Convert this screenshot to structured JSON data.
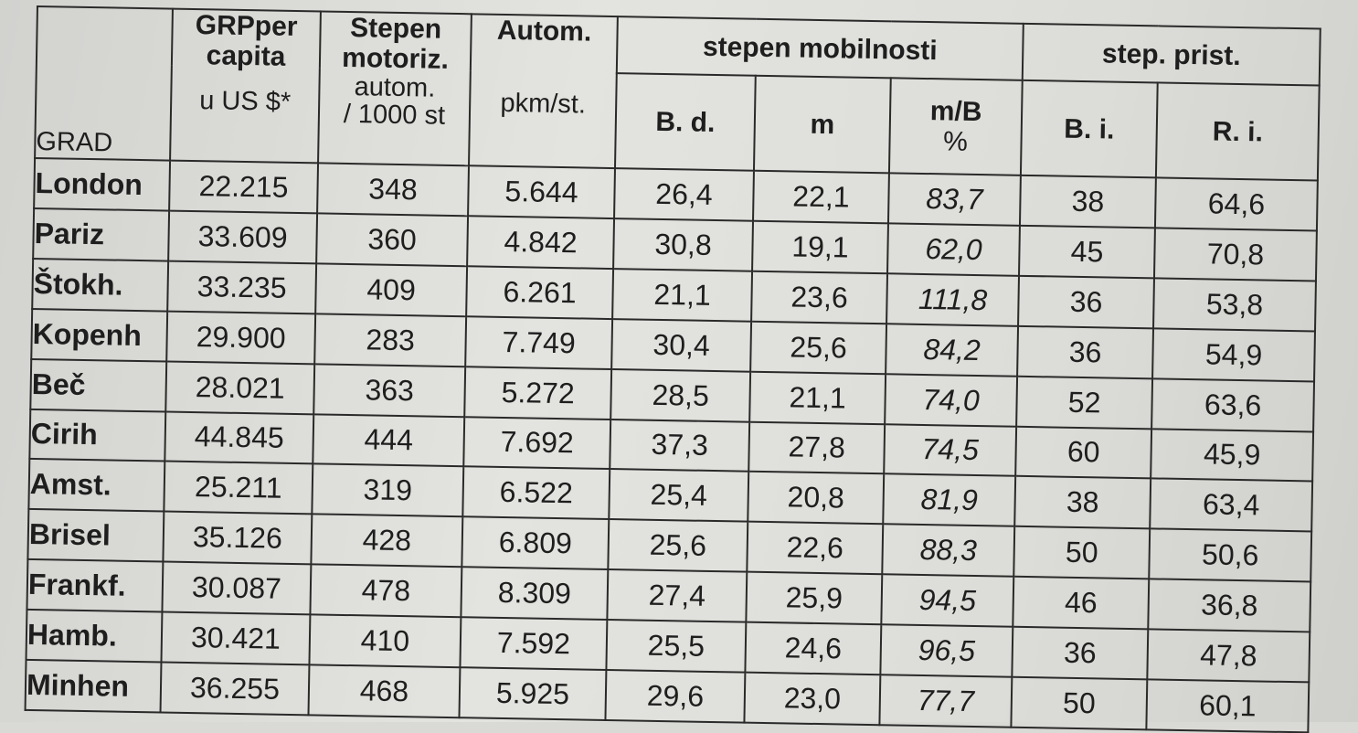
{
  "headers": {
    "grad": "GRAD",
    "grp_line1": "GRPper",
    "grp_line2": "capita",
    "grp_unit": "u US $*",
    "stepen_line1": "Stepen",
    "stepen_line2": "motoriz.",
    "stepen_unit1": "autom.",
    "stepen_unit2": "/ 1000 st",
    "autom": "Autom.",
    "autom_unit": "pkm/st.",
    "mobilnost_group": "stepen  mobilnosti",
    "bd": "B. d.",
    "m": "m",
    "mb_line1": "m/B",
    "mb_line2": "%",
    "prist_group": "step. prist.",
    "bi": "B. i.",
    "ri": "R. i."
  },
  "rows": [
    {
      "city": "London",
      "grp": "22.215",
      "motor": "348",
      "autom": "5.644",
      "bd": "26,4",
      "m": "22,1",
      "mb": "83,7",
      "bi": "38",
      "ri": "64,6"
    },
    {
      "city": "Pariz",
      "grp": "33.609",
      "motor": "360",
      "autom": "4.842",
      "bd": "30,8",
      "m": "19,1",
      "mb": "62,0",
      "bi": "45",
      "ri": "70,8"
    },
    {
      "city": "Štokh.",
      "grp": "33.235",
      "motor": "409",
      "autom": "6.261",
      "bd": "21,1",
      "m": "23,6",
      "mb": "111,8",
      "bi": "36",
      "ri": "53,8"
    },
    {
      "city": "Kopenh",
      "grp": "29.900",
      "motor": "283",
      "autom": "7.749",
      "bd": "30,4",
      "m": "25,6",
      "mb": "84,2",
      "bi": "36",
      "ri": "54,9"
    },
    {
      "city": "Beč",
      "grp": "28.021",
      "motor": "363",
      "autom": "5.272",
      "bd": "28,5",
      "m": "21,1",
      "mb": "74,0",
      "bi": "52",
      "ri": "63,6"
    },
    {
      "city": "Cirih",
      "grp": "44.845",
      "motor": "444",
      "autom": "7.692",
      "bd": "37,3",
      "m": "27,8",
      "mb": "74,5",
      "bi": "60",
      "ri": "45,9"
    },
    {
      "city": "Amst.",
      "grp": "25.211",
      "motor": "319",
      "autom": "6.522",
      "bd": "25,4",
      "m": "20,8",
      "mb": "81,9",
      "bi": "38",
      "ri": "63,4"
    },
    {
      "city": "Brisel",
      "grp": "35.126",
      "motor": "428",
      "autom": "6.809",
      "bd": "25,6",
      "m": "22,6",
      "mb": "88,3",
      "bi": "50",
      "ri": "50,6"
    },
    {
      "city": "Frankf.",
      "grp": "30.087",
      "motor": "478",
      "autom": "8.309",
      "bd": "27,4",
      "m": "25,9",
      "mb": "94,5",
      "bi": "46",
      "ri": "36,8"
    },
    {
      "city": "Hamb.",
      "grp": "30.421",
      "motor": "410",
      "autom": "7.592",
      "bd": "25,5",
      "m": "24,6",
      "mb": "96,5",
      "bi": "36",
      "ri": "47,8"
    },
    {
      "city": "Minhen",
      "grp": "36.255",
      "motor": "468",
      "autom": "5.925",
      "bd": "29,6",
      "m": "23,0",
      "mb": "77,7",
      "bi": "50",
      "ri": "60,1"
    }
  ]
}
